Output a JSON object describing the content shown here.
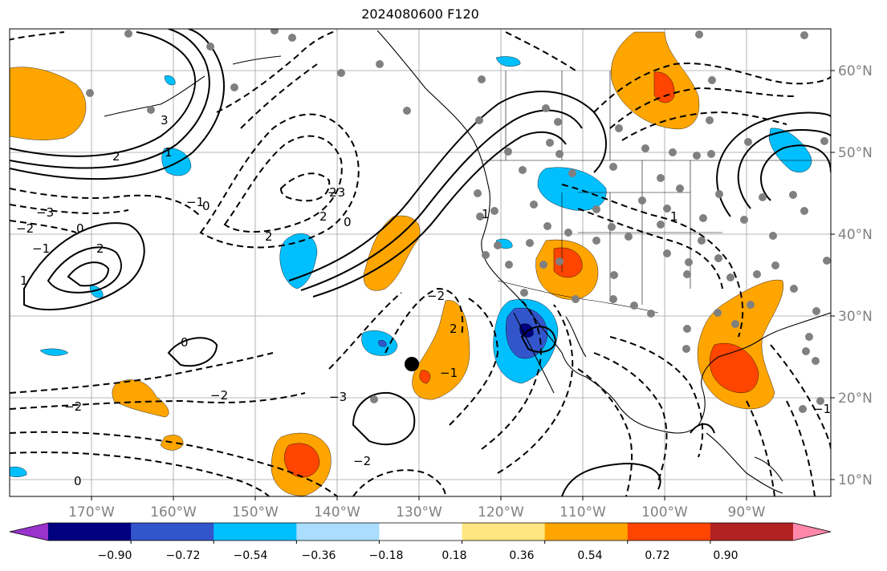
{
  "title": "2024080600 F120",
  "lat_labels": [
    "60°N",
    "50°N",
    "40°N",
    "30°N",
    "20°N",
    "10°N"
  ],
  "lon_labels": [
    "170°W",
    "160°W",
    "150°W",
    "140°W",
    "130°W",
    "120°W",
    "110°W",
    "100°W",
    "90°W"
  ],
  "colorbar": {
    "colors": [
      "#9933cc",
      "#000080",
      "#3355cc",
      "#00bfff",
      "#aaddff",
      "#ffffff",
      "#ffe680",
      "#ffa500",
      "#ff4500",
      "#b22222",
      "#ff88aa"
    ],
    "tick_labels": [
      "−0.90",
      "−0.72",
      "−0.54",
      "−0.36",
      "−0.18",
      "0.18",
      "0.36",
      "0.54",
      "0.72",
      "0.90"
    ]
  },
  "contour_labels": [
    "3",
    "2",
    "1",
    "0",
    "−1",
    "−2",
    "−3",
    "2",
    "1",
    "0",
    "−2",
    "−3",
    "2",
    "0",
    "−1",
    "−2",
    "0",
    "2",
    "−2",
    "1",
    "−1",
    "2",
    "−3",
    "2",
    "−2",
    "0",
    "1",
    "−1"
  ],
  "colors": {
    "land_line": "#000000",
    "grid": "#a0a0a0",
    "station_dot": "#808080",
    "marker": "#000000"
  }
}
